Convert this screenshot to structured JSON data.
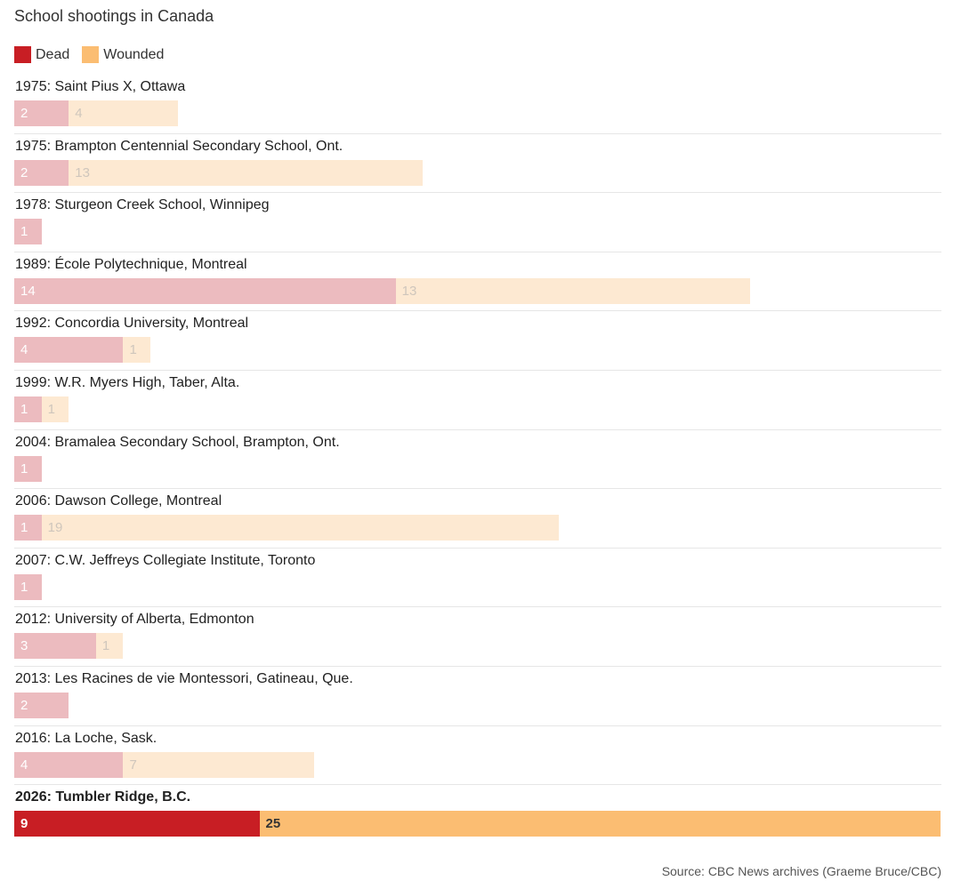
{
  "chart_data": {
    "type": "bar",
    "orientation": "horizontal",
    "stacked": true,
    "title": "School shootings in Canada",
    "legend": [
      {
        "label": "Dead",
        "color": "#c81e24"
      },
      {
        "label": "Wounded",
        "color": "#fbbd72"
      }
    ],
    "categories": [
      "1975: Saint Pius X, Ottawa",
      "1975: Brampton Centennial Secondary School, Ont.",
      "1978: Sturgeon Creek School, Winnipeg",
      "1989: École Polytechnique, Montreal",
      "1992: Concordia University, Montreal",
      "1999: W.R. Myers High, Taber, Alta.",
      "2004: Bramalea Secondary School, Brampton, Ont.",
      "2006: Dawson College, Montreal",
      "2007: C.W. Jeffreys Collegiate Institute, Toronto",
      "2012: University of Alberta, Edmonton",
      "2013: Les Racines de vie Montessori, Gatineau, Que.",
      "2016: La Loche, Sask.",
      "2026: Tumbler Ridge, B.C."
    ],
    "series": [
      {
        "name": "Dead",
        "values": [
          2,
          2,
          1,
          14,
          4,
          1,
          1,
          1,
          1,
          3,
          2,
          4,
          9
        ]
      },
      {
        "name": "Wounded",
        "values": [
          4,
          13,
          null,
          13,
          1,
          1,
          null,
          19,
          null,
          1,
          null,
          7,
          25
        ]
      }
    ],
    "highlight_index": 12,
    "faded_colors": {
      "Dead": "#ecbbbf",
      "Wounded": "#fde9d2"
    },
    "faded_text_colors": {
      "Dead": "#ffffff",
      "Wounded": "#cfc6bc"
    },
    "highlight_text_colors": {
      "Dead": "#ffffff",
      "Wounded": "#333333"
    },
    "xlim": [
      0,
      34
    ]
  },
  "source": "Source: CBC News archives (Graeme Bruce/CBC)"
}
